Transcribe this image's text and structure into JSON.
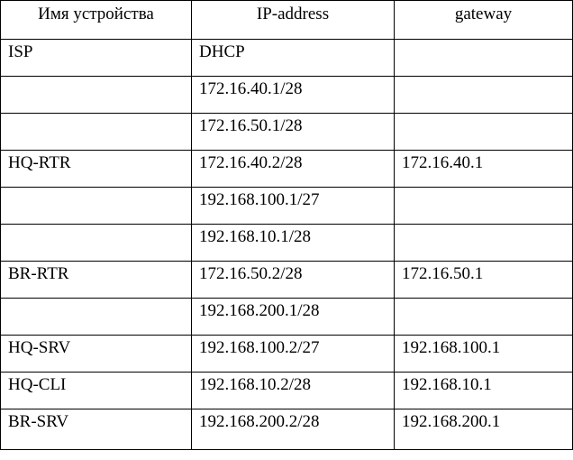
{
  "table": {
    "headers": [
      "Имя устройства",
      "IP-address",
      "gateway"
    ],
    "rows": [
      [
        "ISP",
        "DHCP",
        ""
      ],
      [
        "",
        "172.16.40.1/28",
        ""
      ],
      [
        "",
        "172.16.50.1/28",
        ""
      ],
      [
        "HQ-RTR",
        "172.16.40.2/28",
        "172.16.40.1"
      ],
      [
        "",
        "192.168.100.1/27",
        ""
      ],
      [
        "",
        "192.168.10.1/28",
        ""
      ],
      [
        "BR-RTR",
        "172.16.50.2/28",
        "172.16.50.1"
      ],
      [
        "",
        "192.168.200.1/28",
        ""
      ],
      [
        "HQ-SRV",
        "192.168.100.2/27",
        "192.168.100.1"
      ],
      [
        "HQ-CLI",
        "192.168.10.2/28",
        "192.168.10.1"
      ],
      [
        "BR-SRV",
        "192.168.200.2/28",
        "192.168.200.1"
      ]
    ]
  }
}
